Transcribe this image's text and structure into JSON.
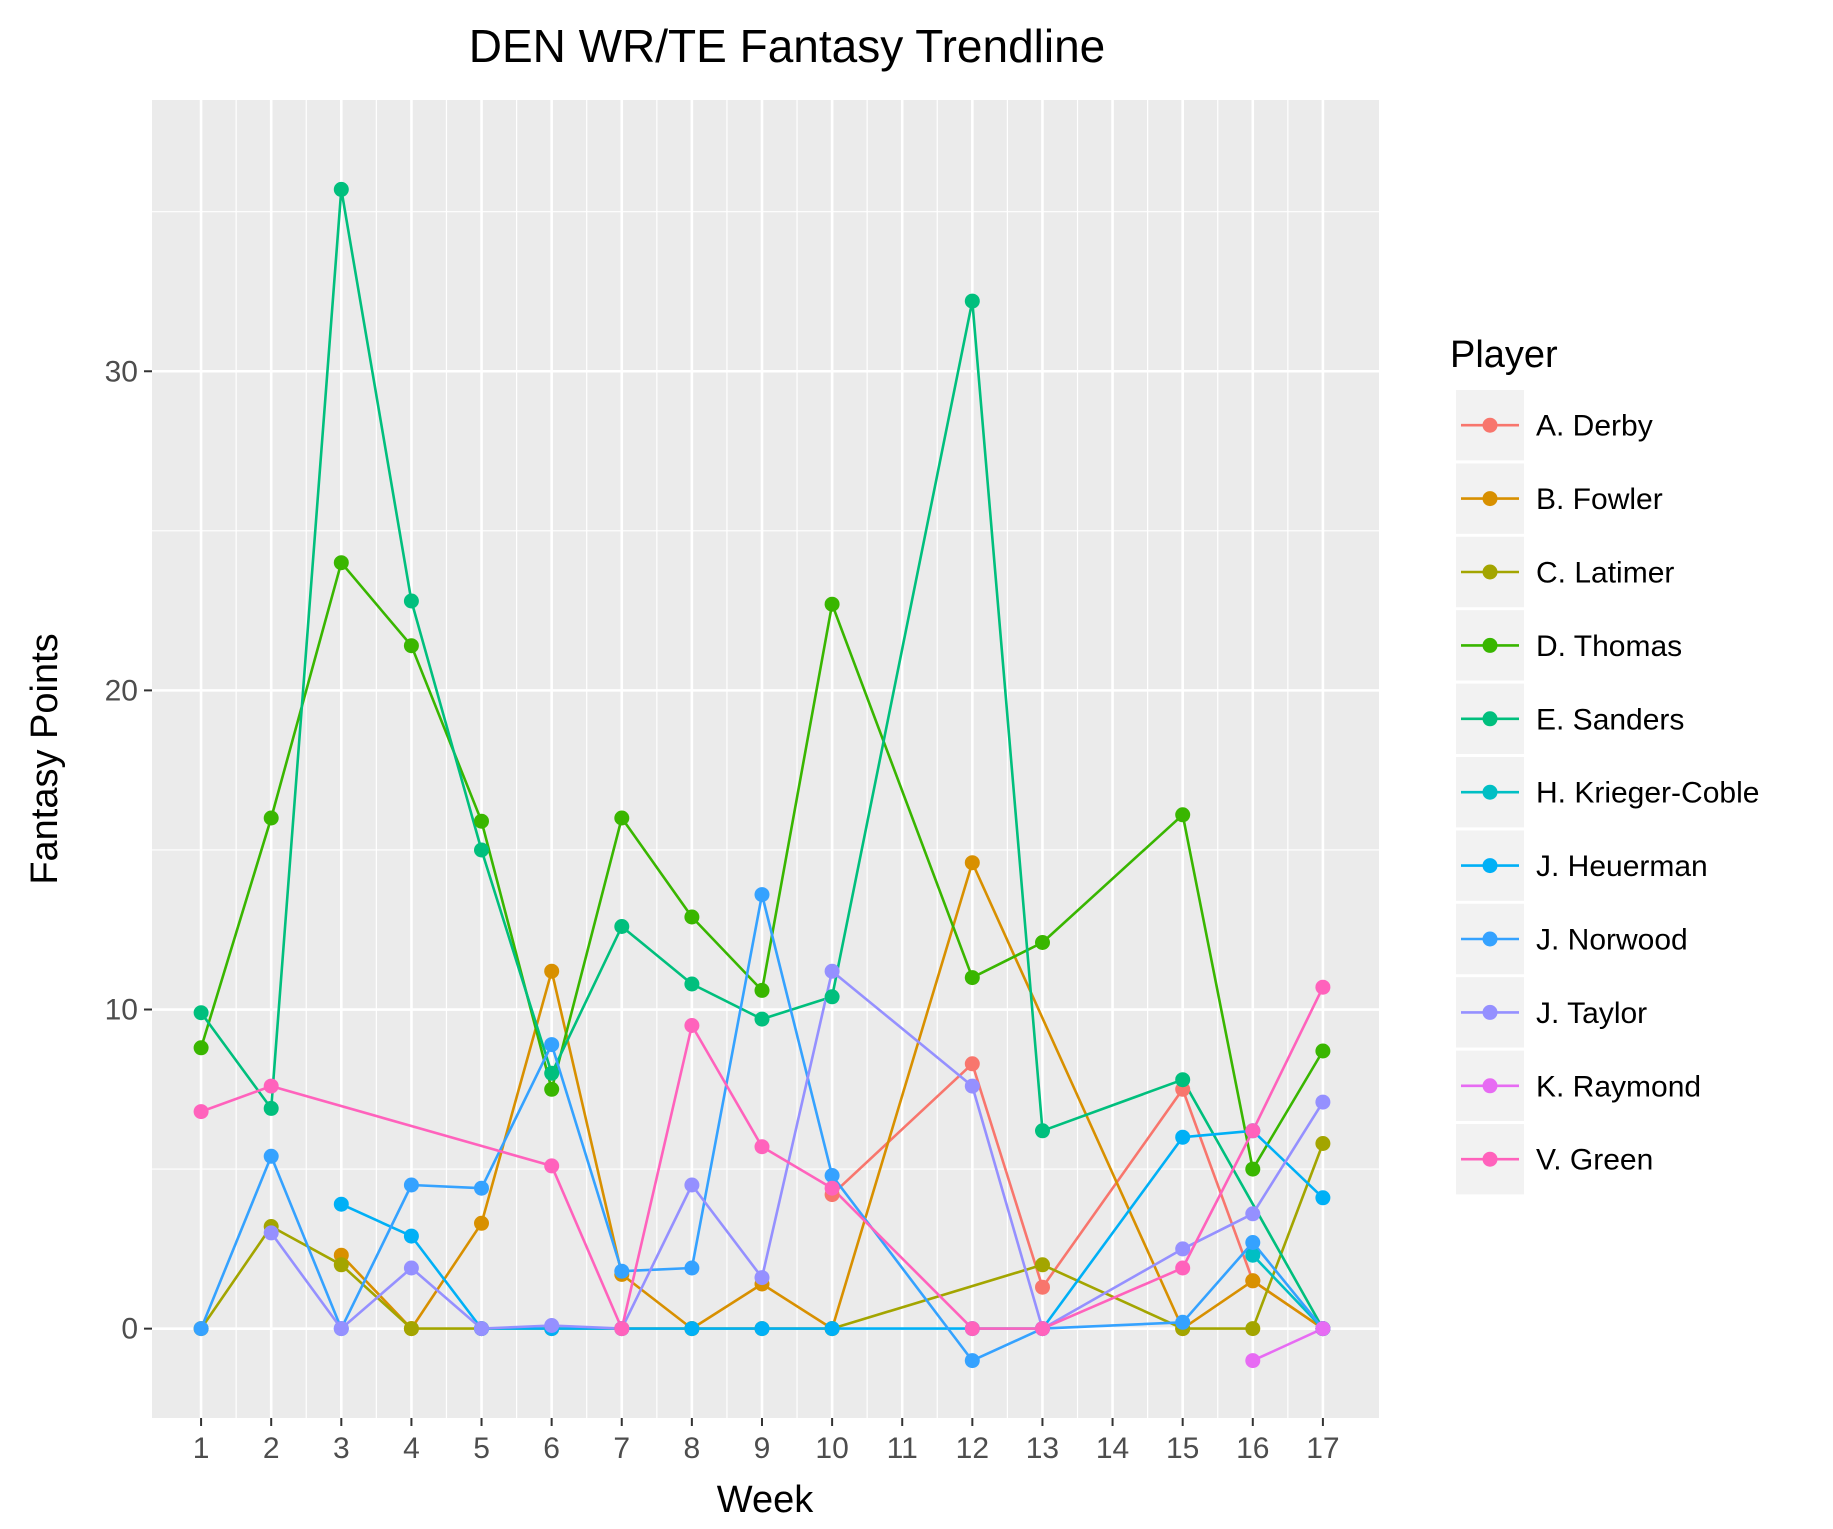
{
  "chart_data": {
    "type": "line",
    "title": "DEN WR/TE Fantasy Trendline",
    "xlabel": "Week",
    "ylabel": "Fantasy Points",
    "xlim": [
      0.3,
      17.8
    ],
    "ylim": [
      -2.8,
      38.5
    ],
    "x_ticks": [
      1,
      2,
      3,
      4,
      5,
      6,
      7,
      8,
      9,
      10,
      11,
      12,
      13,
      14,
      15,
      16,
      17
    ],
    "y_ticks": [
      0,
      10,
      20,
      30
    ],
    "grid": true,
    "legend": {
      "title": "Player",
      "placement": "right"
    },
    "series": [
      {
        "name": "A. Derby",
        "color": "#F8766D",
        "points": [
          [
            10,
            4.2
          ],
          [
            12,
            8.3
          ],
          [
            13,
            1.3
          ],
          [
            15,
            7.5
          ],
          [
            16,
            1.5
          ],
          [
            17,
            0
          ]
        ]
      },
      {
        "name": "B. Fowler",
        "color": "#D89000",
        "points": [
          [
            3,
            2.3
          ],
          [
            4,
            0
          ],
          [
            5,
            3.3
          ],
          [
            6,
            11.2
          ],
          [
            7,
            1.7
          ],
          [
            8,
            0
          ],
          [
            9,
            1.4
          ],
          [
            10,
            0
          ],
          [
            12,
            14.6
          ],
          [
            15,
            0
          ],
          [
            16,
            1.5
          ],
          [
            17,
            0
          ]
        ]
      },
      {
        "name": "C. Latimer",
        "color": "#A3A500",
        "points": [
          [
            1,
            0
          ],
          [
            2,
            3.2
          ],
          [
            3,
            2.0
          ],
          [
            4,
            0
          ],
          [
            5,
            0
          ],
          [
            6,
            0
          ],
          [
            7,
            0
          ],
          [
            8,
            0
          ],
          [
            9,
            0
          ],
          [
            10,
            0
          ],
          [
            13,
            2.0
          ],
          [
            15,
            0
          ],
          [
            16,
            0
          ],
          [
            17,
            5.8
          ]
        ]
      },
      {
        "name": "D. Thomas",
        "color": "#39B600",
        "points": [
          [
            1,
            8.8
          ],
          [
            2,
            16.0
          ],
          [
            3,
            24.0
          ],
          [
            4,
            21.4
          ],
          [
            5,
            15.9
          ],
          [
            6,
            7.5
          ],
          [
            7,
            16.0
          ],
          [
            8,
            12.9
          ],
          [
            9,
            10.6
          ],
          [
            10,
            22.7
          ],
          [
            12,
            11.0
          ],
          [
            13,
            12.1
          ],
          [
            15,
            16.1
          ],
          [
            16,
            5.0
          ],
          [
            17,
            8.7
          ]
        ]
      },
      {
        "name": "E. Sanders",
        "color": "#00BF7D",
        "points": [
          [
            1,
            9.9
          ],
          [
            2,
            6.9
          ],
          [
            3,
            35.7
          ],
          [
            4,
            22.8
          ],
          [
            5,
            15.0
          ],
          [
            6,
            8.0
          ],
          [
            7,
            12.6
          ],
          [
            8,
            10.8
          ],
          [
            9,
            9.7
          ],
          [
            10,
            10.4
          ],
          [
            12,
            32.2
          ],
          [
            13,
            6.2
          ],
          [
            15,
            7.8
          ],
          [
            17,
            0
          ]
        ]
      },
      {
        "name": "H. Krieger-Coble",
        "color": "#00BFC4",
        "points": [
          [
            16,
            2.3
          ],
          [
            17,
            0
          ]
        ]
      },
      {
        "name": "J. Heuerman",
        "color": "#00B0F6",
        "points": [
          [
            3,
            3.9
          ],
          [
            4,
            2.9
          ],
          [
            5,
            0
          ],
          [
            6,
            0
          ],
          [
            7,
            0
          ],
          [
            8,
            0
          ],
          [
            9,
            0
          ],
          [
            10,
            0
          ],
          [
            12,
            0
          ],
          [
            13,
            0
          ],
          [
            15,
            6.0
          ],
          [
            16,
            6.2
          ],
          [
            17,
            4.1
          ]
        ]
      },
      {
        "name": "J. Norwood",
        "color": "#35A2FF",
        "points": [
          [
            1,
            0
          ],
          [
            2,
            5.4
          ],
          [
            3,
            0
          ],
          [
            4,
            4.5
          ],
          [
            5,
            4.4
          ],
          [
            6,
            8.9
          ],
          [
            7,
            1.8
          ],
          [
            8,
            1.9
          ],
          [
            9,
            13.6
          ],
          [
            10,
            4.8
          ],
          [
            12,
            -1.0
          ],
          [
            13,
            0
          ],
          [
            15,
            0.2
          ],
          [
            16,
            2.7
          ],
          [
            17,
            0
          ]
        ]
      },
      {
        "name": "J. Taylor",
        "color": "#9590FF",
        "points": [
          [
            2,
            3.0
          ],
          [
            3,
            0
          ],
          [
            4,
            1.9
          ],
          [
            5,
            0
          ],
          [
            6,
            0.1
          ],
          [
            7,
            0
          ],
          [
            8,
            4.5
          ],
          [
            9,
            1.6
          ],
          [
            10,
            11.2
          ],
          [
            12,
            7.6
          ],
          [
            13,
            0
          ],
          [
            15,
            2.5
          ],
          [
            16,
            3.6
          ],
          [
            17,
            7.1
          ]
        ]
      },
      {
        "name": "K. Raymond",
        "color": "#E76BF3",
        "points": [
          [
            16,
            -1.0
          ],
          [
            17,
            0
          ]
        ]
      },
      {
        "name": "V. Green",
        "color": "#FF62BC",
        "points": [
          [
            1,
            6.8
          ],
          [
            2,
            7.6
          ],
          [
            6,
            5.1
          ],
          [
            7,
            0
          ],
          [
            8,
            9.5
          ],
          [
            9,
            5.7
          ],
          [
            10,
            4.4
          ],
          [
            12,
            0
          ],
          [
            13,
            0
          ],
          [
            15,
            1.9
          ],
          [
            16,
            6.2
          ],
          [
            17,
            10.7
          ]
        ]
      }
    ]
  }
}
